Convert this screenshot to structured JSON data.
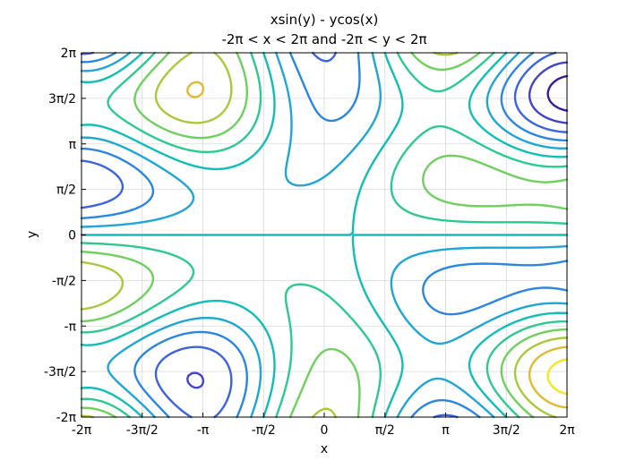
{
  "chart_data": {
    "type": "contour",
    "title": "xsin(y) - ycos(x)",
    "subtitle": "-2π < x < 2π and -2π < y < 2π",
    "xlabel": "x",
    "ylabel": "y",
    "function": "x*sin(y) - y*cos(x)",
    "xlim": [
      -6.283185307,
      6.283185307
    ],
    "ylim": [
      -6.283185307,
      6.283185307
    ],
    "x_ticks": [
      {
        "value": -6.283185307,
        "label": "-2π"
      },
      {
        "value": -4.71238898,
        "label": "-3π/2"
      },
      {
        "value": -3.141592654,
        "label": "-π"
      },
      {
        "value": -1.570796327,
        "label": "-π/2"
      },
      {
        "value": 0,
        "label": "0"
      },
      {
        "value": 1.570796327,
        "label": "π/2"
      },
      {
        "value": 3.141592654,
        "label": "π"
      },
      {
        "value": 4.71238898,
        "label": "3π/2"
      },
      {
        "value": 6.283185307,
        "label": "2π"
      }
    ],
    "y_ticks": [
      {
        "value": -6.283185307,
        "label": "-2π"
      },
      {
        "value": -4.71238898,
        "label": "-3π/2"
      },
      {
        "value": -3.141592654,
        "label": "-π"
      },
      {
        "value": -1.570796327,
        "label": "-π/2"
      },
      {
        "value": 0,
        "label": "0"
      },
      {
        "value": 1.570796327,
        "label": "π/2"
      },
      {
        "value": 3.141592654,
        "label": "π"
      },
      {
        "value": 4.71238898,
        "label": "3π/2"
      },
      {
        "value": 6.283185307,
        "label": "2π"
      }
    ],
    "grid": true,
    "levels": [
      -10,
      -8,
      -6,
      -4,
      -2,
      0,
      2,
      4,
      6,
      8,
      10
    ],
    "colormap": [
      "#3a1d96",
      "#4344c9",
      "#3c63e0",
      "#2b86e0",
      "#1fa5d6",
      "#12bdb8",
      "#2ec98f",
      "#6fcf5f",
      "#a9c93d",
      "#e3b933",
      "#f5e61e"
    ]
  }
}
